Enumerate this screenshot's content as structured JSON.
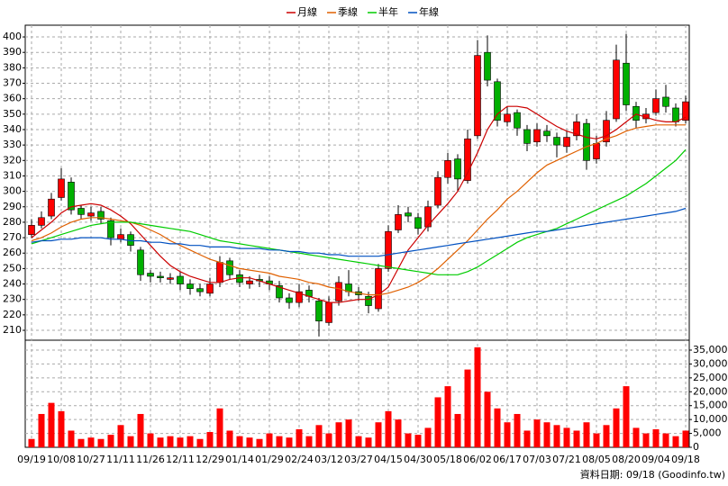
{
  "chart_data": {
    "type": "candlestick",
    "categories": [
      "09/19",
      null,
      null,
      "10/08",
      null,
      null,
      "10/27",
      null,
      null,
      "11/11",
      null,
      null,
      "11/26",
      null,
      null,
      "12/11",
      null,
      null,
      "12/29",
      null,
      null,
      "01/14",
      null,
      null,
      "01/29",
      null,
      null,
      "02/24",
      null,
      null,
      "03/12",
      null,
      null,
      "03/27",
      null,
      null,
      "04/15",
      null,
      null,
      "04/30",
      null,
      null,
      "05/18",
      null,
      null,
      "06/02",
      null,
      null,
      "06/17",
      null,
      null,
      "07/03",
      null,
      null,
      "07/21",
      null,
      null,
      "08/05",
      null,
      null,
      "08/20",
      null,
      null,
      "09/04",
      null,
      null,
      "09/18"
    ],
    "open": [
      272,
      278,
      284,
      296,
      306,
      289,
      284,
      287,
      281,
      269,
      272,
      262,
      247,
      245,
      243,
      245,
      240,
      237,
      234,
      241,
      255,
      246,
      240,
      243,
      242,
      239,
      231,
      228,
      236,
      229,
      215,
      229,
      240,
      235,
      232,
      224,
      250,
      275,
      286,
      283,
      277,
      291,
      309,
      321,
      307,
      336,
      390,
      371,
      345,
      351,
      340,
      332,
      339,
      335,
      329,
      336,
      344,
      321,
      332,
      347,
      383,
      355,
      347,
      351,
      361,
      354,
      346
    ],
    "high": [
      282,
      287,
      299,
      315,
      309,
      291,
      290,
      290,
      283,
      276,
      274,
      264,
      249,
      248,
      247,
      248,
      243,
      240,
      244,
      258,
      257,
      249,
      245,
      246,
      245,
      242,
      234,
      240,
      239,
      231,
      232,
      245,
      249,
      238,
      235,
      253,
      278,
      291,
      290,
      286,
      294,
      313,
      325,
      324,
      340,
      398,
      401,
      373,
      355,
      353,
      343,
      344,
      343,
      338,
      339,
      350,
      347,
      336,
      352,
      395,
      402,
      358,
      354,
      366,
      369,
      357,
      362
    ],
    "low": [
      270,
      276,
      282,
      294,
      285,
      282,
      281,
      279,
      265,
      267,
      261,
      242,
      241,
      241,
      240,
      236,
      233,
      232,
      232,
      238,
      243,
      238,
      237,
      238,
      236,
      228,
      224,
      225,
      228,
      206,
      213,
      226,
      232,
      229,
      221,
      222,
      248,
      273,
      280,
      272,
      274,
      289,
      305,
      300,
      305,
      334,
      368,
      342,
      342,
      336,
      326,
      329,
      332,
      322,
      325,
      333,
      314,
      318,
      329,
      345,
      352,
      341,
      344,
      349,
      351,
      342,
      344
    ],
    "close": [
      278,
      283,
      295,
      308,
      288,
      285,
      286,
      282,
      270,
      272,
      265,
      246,
      245,
      244,
      244,
      240,
      237,
      235,
      240,
      254,
      246,
      241,
      242,
      242,
      240,
      231,
      228,
      235,
      232,
      216,
      228,
      241,
      235,
      233,
      226,
      250,
      274,
      285,
      284,
      276,
      290,
      309,
      320,
      308,
      334,
      388,
      372,
      346,
      350,
      341,
      331,
      340,
      336,
      330,
      335,
      345,
      320,
      331,
      346,
      385,
      356,
      346,
      350,
      360,
      355,
      345,
      358
    ],
    "up_color": "#ff0000",
    "down_color": "#00b000",
    "series": [
      {
        "name": "月線",
        "color": "#cc0000",
        "values": [
          270,
          275,
          280,
          286,
          290,
          291,
          292,
          291,
          288,
          284,
          279,
          272,
          265,
          258,
          252,
          248,
          245,
          243,
          241,
          241,
          243,
          244,
          244,
          242,
          240,
          238,
          236,
          234,
          232,
          230,
          228,
          228,
          229,
          230,
          230,
          233,
          238,
          250,
          262,
          270,
          278,
          285,
          292,
          300,
          312,
          325,
          340,
          350,
          355,
          355,
          354,
          350,
          346,
          342,
          339,
          337,
          335,
          334,
          336,
          340,
          345,
          350,
          348,
          346,
          345,
          345,
          348
        ]
      },
      {
        "name": "季線",
        "color": "#e06000",
        "values": [
          268,
          270,
          273,
          277,
          280,
          282,
          283,
          283,
          282,
          281,
          280,
          278,
          275,
          272,
          268,
          265,
          262,
          259,
          256,
          254,
          252,
          250,
          249,
          248,
          247,
          245,
          244,
          243,
          241,
          240,
          238,
          237,
          235,
          234,
          233,
          233,
          234,
          236,
          238,
          241,
          245,
          250,
          256,
          262,
          268,
          275,
          282,
          288,
          295,
          300,
          306,
          312,
          317,
          320,
          323,
          326,
          329,
          331,
          334,
          336,
          339,
          341,
          342,
          343,
          343,
          343,
          343
        ]
      },
      {
        "name": "半年",
        "color": "#00cc00",
        "values": [
          266,
          268,
          270,
          272,
          274,
          276,
          278,
          279,
          280,
          280,
          280,
          279,
          278,
          277,
          276,
          275,
          274,
          272,
          270,
          268,
          267,
          266,
          265,
          264,
          263,
          262,
          261,
          260,
          259,
          258,
          257,
          256,
          255,
          254,
          253,
          252,
          251,
          250,
          249,
          248,
          247,
          246,
          246,
          246,
          248,
          251,
          255,
          259,
          263,
          267,
          270,
          272,
          274,
          276,
          279,
          282,
          285,
          288,
          291,
          294,
          297,
          301,
          305,
          310,
          315,
          320,
          327
        ]
      },
      {
        "name": "年線",
        "color": "#0050c0",
        "values": [
          267,
          268,
          268,
          269,
          269,
          270,
          270,
          270,
          269,
          269,
          268,
          268,
          267,
          267,
          266,
          266,
          265,
          265,
          264,
          264,
          264,
          263,
          263,
          263,
          262,
          262,
          261,
          261,
          260,
          260,
          259,
          259,
          258,
          258,
          258,
          258,
          259,
          260,
          261,
          262,
          263,
          264,
          265,
          266,
          267,
          268,
          269,
          270,
          271,
          272,
          273,
          274,
          274,
          275,
          276,
          277,
          278,
          279,
          280,
          281,
          282,
          283,
          284,
          285,
          286,
          287,
          289
        ]
      }
    ],
    "ylim": [
      203.6,
      407.6
    ],
    "yticks": [
      210,
      220,
      230,
      240,
      250,
      260,
      270,
      280,
      290,
      300,
      310,
      320,
      330,
      340,
      350,
      360,
      370,
      380,
      390,
      400
    ],
    "volume": {
      "color": "#ff0000",
      "values": [
        3000,
        12000,
        16000,
        13000,
        6000,
        3000,
        3500,
        3000,
        4500,
        8000,
        4000,
        12000,
        5000,
        3500,
        4000,
        3500,
        4000,
        3000,
        5500,
        14000,
        6000,
        4000,
        3500,
        3000,
        5000,
        4000,
        3500,
        6500,
        4000,
        8000,
        5000,
        9000,
        10000,
        4000,
        3500,
        9000,
        13000,
        10000,
        5000,
        4500,
        7000,
        18000,
        22000,
        12000,
        28000,
        36000,
        20000,
        14000,
        9000,
        12000,
        6000,
        10000,
        9000,
        8000,
        7000,
        6000,
        9000,
        5000,
        8000,
        14000,
        22000,
        7000,
        5000,
        6500,
        5000,
        4000,
        6000
      ],
      "ylim": [
        0,
        38565
      ],
      "yticks": [
        0,
        {
          "value": 5000,
          "label": "5,000"
        },
        {
          "value": 10000,
          "label": "10,000"
        },
        {
          "value": 15000,
          "label": "15,000"
        },
        {
          "value": 20000,
          "label": "20,000"
        },
        {
          "value": 25000,
          "label": "25,000"
        },
        {
          "value": 30000,
          "label": "30,000"
        },
        {
          "value": 35000,
          "label": "35,000"
        }
      ]
    },
    "grid": true,
    "footer": "資料日期: 09/18 (Goodinfo.tw)"
  }
}
